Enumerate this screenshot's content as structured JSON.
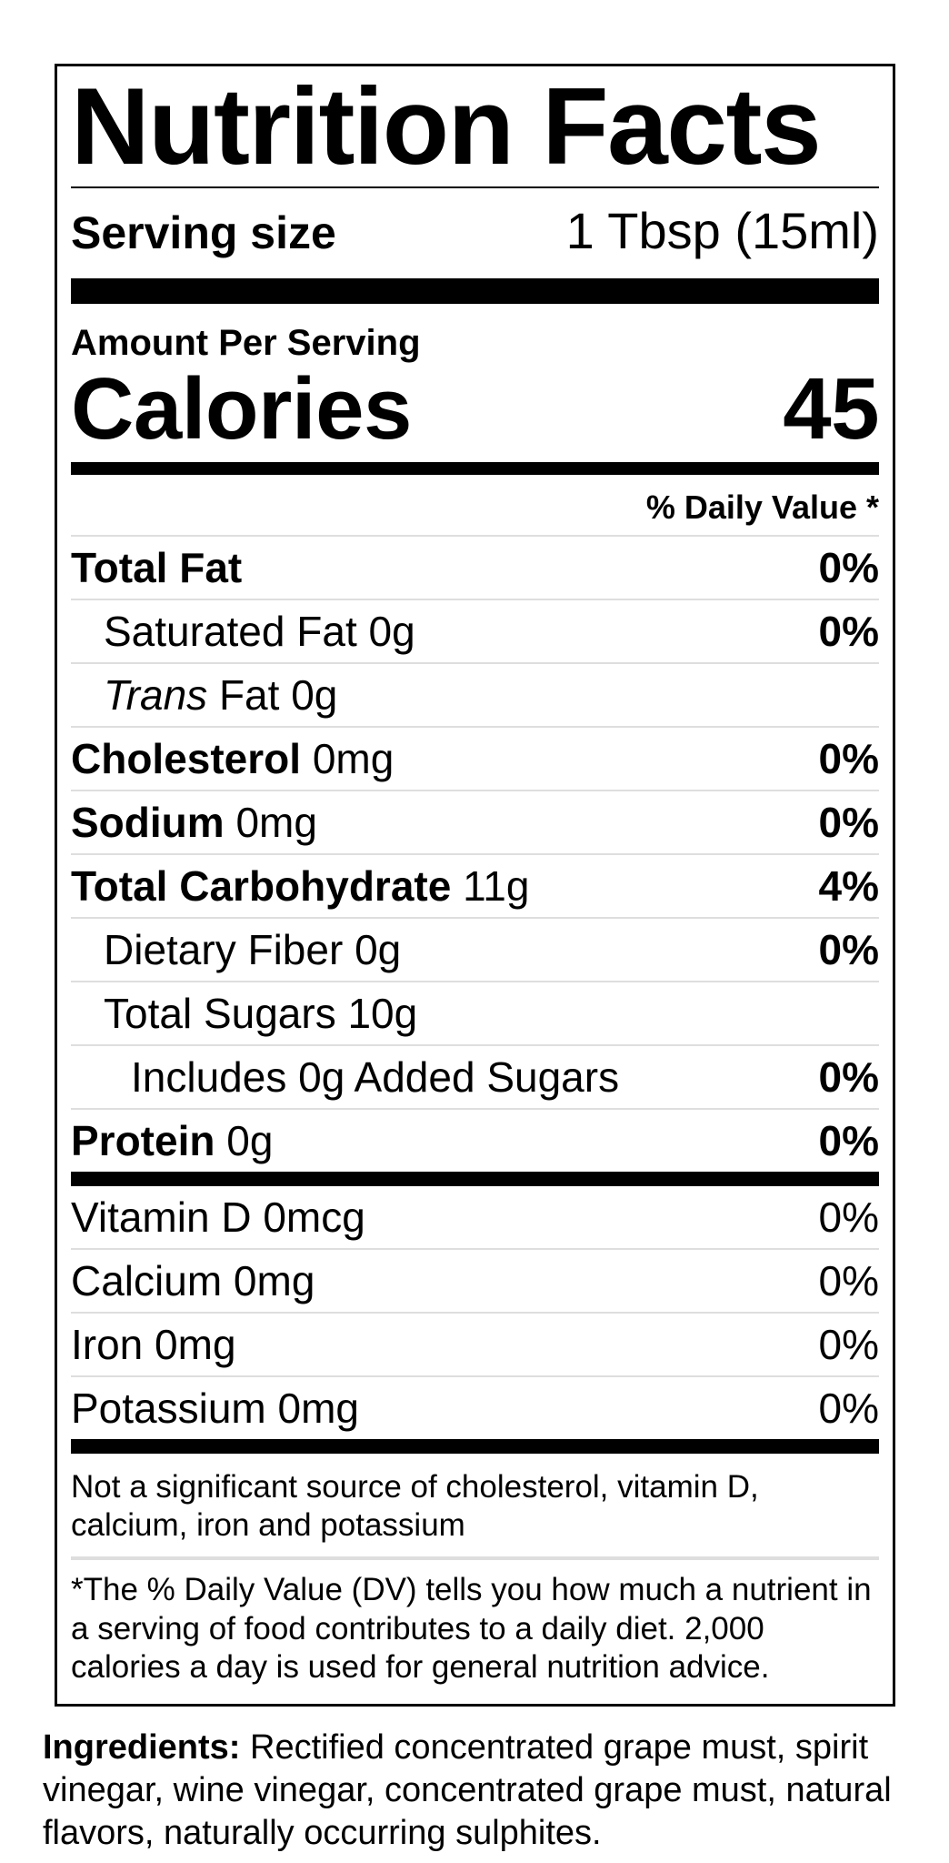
{
  "label": {
    "title": "Nutrition Facts",
    "serving": {
      "label": "Serving size",
      "value": "1 Tbsp (15ml)"
    },
    "amount_per_serving": "Amount Per Serving",
    "calories": {
      "label": "Calories",
      "value": "45"
    },
    "daily_value_header": "% Daily Value *",
    "nutrients": [
      {
        "bold": "Total Fat",
        "pct": "0%"
      },
      {
        "rest": "Saturated Fat 0g",
        "pct": "0%"
      },
      {
        "italic": "Trans",
        "rest": " Fat 0g"
      },
      {
        "bold": "Cholesterol",
        "rest": " 0mg",
        "pct": "0%"
      },
      {
        "bold": "Sodium",
        "rest": " 0mg",
        "pct": "0%"
      },
      {
        "bold": "Total Carbohydrate",
        "rest": " 11g",
        "pct": "4%"
      },
      {
        "rest": "Dietary Fiber 0g",
        "pct": "0%"
      },
      {
        "rest": "Total Sugars 10g"
      },
      {
        "rest": "Includes 0g Added Sugars",
        "pct": "0%"
      },
      {
        "bold": "Protein",
        "rest": " 0g",
        "pct": "0%"
      }
    ],
    "vitamins": [
      {
        "name": "Vitamin D 0mcg",
        "pct": "0%"
      },
      {
        "name": "Calcium 0mg",
        "pct": "0%"
      },
      {
        "name": "Iron 0mg",
        "pct": "0%"
      },
      {
        "name": "Potassium 0mg",
        "pct": "0%"
      }
    ],
    "footnote_source": "Not a significant source of cholesterol, vitamin D, calcium, iron and potassium",
    "footnote_dv": "*The % Daily Value (DV) tells you how much a nutrient in a serving of food contributes to a daily diet. 2,000 calories a day is used for general nutrition advice.",
    "colors": {
      "text": "#000000",
      "hairline": "#dedede",
      "background": "#ffffff"
    }
  },
  "ingredients": {
    "label": "Ingredients:",
    "text": "Rectified concentrated grape must, spirit vinegar, wine vinegar, concentrated grape must, natural flavors, naturally occurring sulphites."
  }
}
